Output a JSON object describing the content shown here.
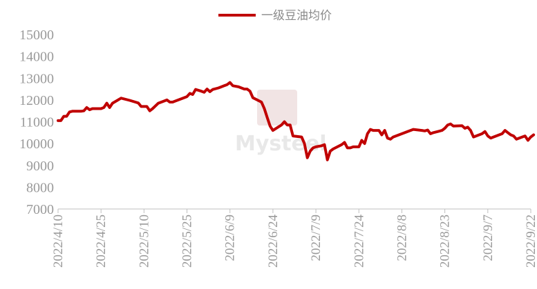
{
  "chart_data": {
    "type": "line",
    "title": "",
    "xlabel": "",
    "ylabel": "",
    "ylim": [
      7000,
      15000
    ],
    "yticks": [
      "7000",
      "8000",
      "9000",
      "10000",
      "11000",
      "12000",
      "13000",
      "14000",
      "15000"
    ],
    "xticks": [
      "2022/4/10",
      "2022/4/25",
      "2022/5/10",
      "2022/5/25",
      "2022/6/9",
      "2022/6/24",
      "2022/7/9",
      "2022/7/24",
      "2022/8/8",
      "2022/8/23",
      "2022/9/7",
      "2022/9/22"
    ],
    "grid": false,
    "legend_position": "top-center",
    "watermark": "Mysteel",
    "series": [
      {
        "name": "一级豆油均价",
        "color": "#c00000",
        "points": [
          [
            "2022-04-10",
            11050
          ],
          [
            "2022-04-11",
            11050
          ],
          [
            "2022-04-12",
            11250
          ],
          [
            "2022-04-13",
            11250
          ],
          [
            "2022-04-14",
            11450
          ],
          [
            "2022-04-15",
            11480
          ],
          [
            "2022-04-18",
            11480
          ],
          [
            "2022-04-19",
            11500
          ],
          [
            "2022-04-20",
            11650
          ],
          [
            "2022-04-21",
            11550
          ],
          [
            "2022-04-22",
            11600
          ],
          [
            "2022-04-25",
            11600
          ],
          [
            "2022-04-26",
            11650
          ],
          [
            "2022-04-27",
            11850
          ],
          [
            "2022-04-28",
            11650
          ],
          [
            "2022-04-29",
            11850
          ],
          [
            "2022-05-02",
            12080
          ],
          [
            "2022-05-05",
            11980
          ],
          [
            "2022-05-07",
            11900
          ],
          [
            "2022-05-08",
            11860
          ],
          [
            "2022-05-09",
            11700
          ],
          [
            "2022-05-10",
            11700
          ],
          [
            "2022-05-11",
            11700
          ],
          [
            "2022-05-12",
            11500
          ],
          [
            "2022-05-13",
            11600
          ],
          [
            "2022-05-15",
            11850
          ],
          [
            "2022-05-17",
            11950
          ],
          [
            "2022-05-18",
            12000
          ],
          [
            "2022-05-19",
            11900
          ],
          [
            "2022-05-20",
            11900
          ],
          [
            "2022-05-23",
            12050
          ],
          [
            "2022-05-25",
            12150
          ],
          [
            "2022-05-26",
            12300
          ],
          [
            "2022-05-27",
            12250
          ],
          [
            "2022-05-28",
            12480
          ],
          [
            "2022-05-30",
            12400
          ],
          [
            "2022-05-31",
            12350
          ],
          [
            "2022-06-01",
            12500
          ],
          [
            "2022-06-02",
            12380
          ],
          [
            "2022-06-03",
            12480
          ],
          [
            "2022-06-05",
            12550
          ],
          [
            "2022-06-06",
            12600
          ],
          [
            "2022-06-07",
            12650
          ],
          [
            "2022-06-08",
            12700
          ],
          [
            "2022-06-09",
            12800
          ],
          [
            "2022-06-10",
            12650
          ],
          [
            "2022-06-12",
            12600
          ],
          [
            "2022-06-13",
            12550
          ],
          [
            "2022-06-14",
            12500
          ],
          [
            "2022-06-15",
            12500
          ],
          [
            "2022-06-16",
            12400
          ],
          [
            "2022-06-17",
            12100
          ],
          [
            "2022-06-20",
            11900
          ],
          [
            "2022-06-21",
            11600
          ],
          [
            "2022-06-22",
            11200
          ],
          [
            "2022-06-23",
            10800
          ],
          [
            "2022-06-24",
            10600
          ],
          [
            "2022-06-27",
            10850
          ],
          [
            "2022-06-28",
            11000
          ],
          [
            "2022-06-29",
            10850
          ],
          [
            "2022-06-30",
            10850
          ],
          [
            "2022-07-01",
            10350
          ],
          [
            "2022-07-04",
            10300
          ],
          [
            "2022-07-05",
            10000
          ],
          [
            "2022-07-06",
            9350
          ],
          [
            "2022-07-07",
            9650
          ],
          [
            "2022-07-08",
            9800
          ],
          [
            "2022-07-09",
            9850
          ],
          [
            "2022-07-11",
            9900
          ],
          [
            "2022-07-12",
            9950
          ],
          [
            "2022-07-13",
            9250
          ],
          [
            "2022-07-14",
            9650
          ],
          [
            "2022-07-15",
            9750
          ],
          [
            "2022-07-18",
            9950
          ],
          [
            "2022-07-19",
            10050
          ],
          [
            "2022-07-20",
            9800
          ],
          [
            "2022-07-21",
            9800
          ],
          [
            "2022-07-22",
            9850
          ],
          [
            "2022-07-24",
            9850
          ],
          [
            "2022-07-25",
            10150
          ],
          [
            "2022-07-26",
            10000
          ],
          [
            "2022-07-27",
            10450
          ],
          [
            "2022-07-28",
            10650
          ],
          [
            "2022-07-29",
            10600
          ],
          [
            "2022-07-31",
            10600
          ],
          [
            "2022-08-01",
            10400
          ],
          [
            "2022-08-02",
            10600
          ],
          [
            "2022-08-03",
            10250
          ],
          [
            "2022-08-04",
            10200
          ],
          [
            "2022-08-05",
            10300
          ],
          [
            "2022-08-08",
            10450
          ],
          [
            "2022-08-10",
            10550
          ],
          [
            "2022-08-12",
            10650
          ],
          [
            "2022-08-15",
            10600
          ],
          [
            "2022-08-16",
            10580
          ],
          [
            "2022-08-17",
            10620
          ],
          [
            "2022-08-18",
            10450
          ],
          [
            "2022-08-19",
            10500
          ],
          [
            "2022-08-22",
            10600
          ],
          [
            "2022-08-23",
            10700
          ],
          [
            "2022-08-24",
            10850
          ],
          [
            "2022-08-25",
            10900
          ],
          [
            "2022-08-26",
            10800
          ],
          [
            "2022-08-29",
            10820
          ],
          [
            "2022-08-30",
            10700
          ],
          [
            "2022-08-31",
            10750
          ],
          [
            "2022-09-01",
            10600
          ],
          [
            "2022-09-02",
            10300
          ],
          [
            "2022-09-05",
            10450
          ],
          [
            "2022-09-06",
            10550
          ],
          [
            "2022-09-07",
            10350
          ],
          [
            "2022-09-08",
            10250
          ],
          [
            "2022-09-09",
            10300
          ],
          [
            "2022-09-12",
            10450
          ],
          [
            "2022-09-13",
            10600
          ],
          [
            "2022-09-14",
            10500
          ],
          [
            "2022-09-15",
            10400
          ],
          [
            "2022-09-16",
            10350
          ],
          [
            "2022-09-17",
            10200
          ],
          [
            "2022-09-19",
            10300
          ],
          [
            "2022-09-20",
            10350
          ],
          [
            "2022-09-21",
            10150
          ],
          [
            "2022-09-22",
            10300
          ],
          [
            "2022-09-23",
            10400
          ]
        ]
      }
    ]
  }
}
